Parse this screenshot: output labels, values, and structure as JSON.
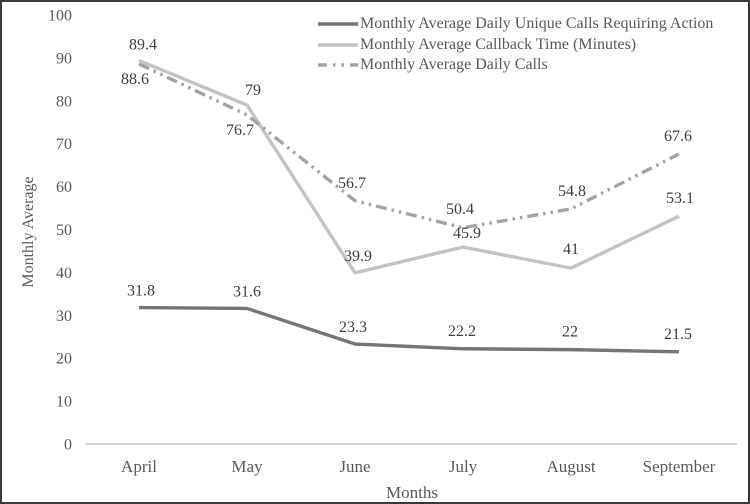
{
  "figure": {
    "background": "#ffffff",
    "border_color": "#3a3a3a"
  },
  "chart_data": {
    "type": "line",
    "title": "",
    "xlabel": "Months",
    "ylabel": "Monthly Average",
    "categories": [
      "April",
      "May",
      "June",
      "July",
      "August",
      "September"
    ],
    "y_ticks": [
      0,
      10,
      20,
      30,
      40,
      50,
      60,
      70,
      80,
      90,
      100
    ],
    "ylim": [
      0,
      100
    ],
    "grid": false,
    "legend_position": "top-center",
    "axis_color": "#c6c6c6",
    "tick_color": "#595959",
    "label_color": "#3f3f3f",
    "series": [
      {
        "name": "Monthly Average Daily Unique Calls Requiring Action",
        "style": "solid",
        "color": "#757575",
        "values": [
          31.8,
          31.6,
          23.3,
          22.2,
          22,
          21.5
        ],
        "labels": [
          "31.8",
          "31.6",
          "23.3",
          "22.2",
          "22",
          "21.5"
        ],
        "label_offsets": [
          [
            2,
            -12
          ],
          [
            0,
            -12
          ],
          [
            -2,
            -12
          ],
          [
            -1,
            -13
          ],
          [
            -1,
            -13
          ],
          [
            -1,
            -13
          ]
        ]
      },
      {
        "name": "Monthly Average Callback Time (Minutes)",
        "style": "solid",
        "color": "#c3c3c3",
        "values": [
          89.4,
          79,
          39.9,
          45.9,
          41,
          53.1
        ],
        "labels": [
          "89.4",
          "79",
          "39.9",
          "45.9",
          "41",
          "53.1"
        ],
        "label_offsets": [
          [
            4,
            -11
          ],
          [
            6,
            -10
          ],
          [
            3,
            -12
          ],
          [
            4,
            -9
          ],
          [
            0,
            -14
          ],
          [
            1,
            -13
          ]
        ]
      },
      {
        "name": "Monthly Average Daily Calls",
        "style": "dash-dot-dot",
        "color": "#a3a3a3",
        "values": [
          88.6,
          76.7,
          56.7,
          50.4,
          54.8,
          67.6
        ],
        "labels": [
          "88.6",
          "76.7",
          "56.7",
          "50.4",
          "54.8",
          "67.6"
        ],
        "label_offsets": [
          [
            -4,
            20
          ],
          [
            -7,
            20
          ],
          [
            -3,
            -13
          ],
          [
            -3,
            -14
          ],
          [
            1,
            -13
          ],
          [
            -1,
            -13
          ]
        ]
      }
    ]
  }
}
